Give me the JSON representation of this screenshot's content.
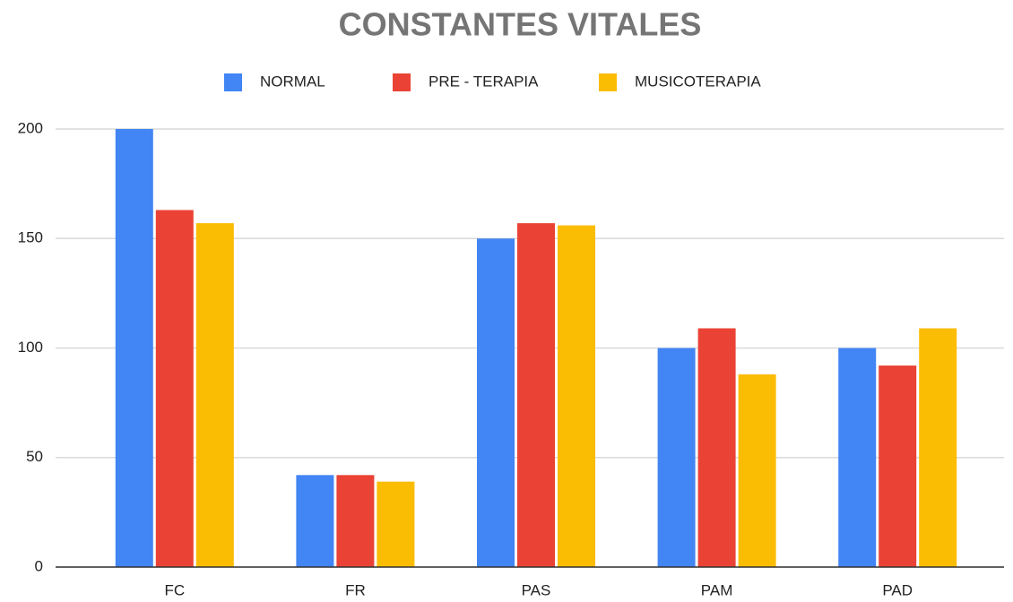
{
  "chart_data": {
    "type": "bar",
    "title": "CONSTANTES VITALES",
    "categories": [
      "FC",
      "FR",
      "PAS",
      "PAM",
      "PAD"
    ],
    "series": [
      {
        "name": "NORMAL",
        "color": "#4285f4",
        "values": [
          200,
          42,
          150,
          100,
          100
        ]
      },
      {
        "name": "PRE - TERAPIA",
        "color": "#ea4335",
        "values": [
          163,
          42,
          157,
          109,
          92
        ]
      },
      {
        "name": "MUSICOTERAPIA",
        "color": "#fbbc04",
        "values": [
          157,
          39,
          156,
          88,
          109
        ]
      }
    ],
    "ylim": [
      0,
      200
    ],
    "yticks": [
      0,
      50,
      100,
      150,
      200
    ],
    "grid": true,
    "legend": "top"
  }
}
